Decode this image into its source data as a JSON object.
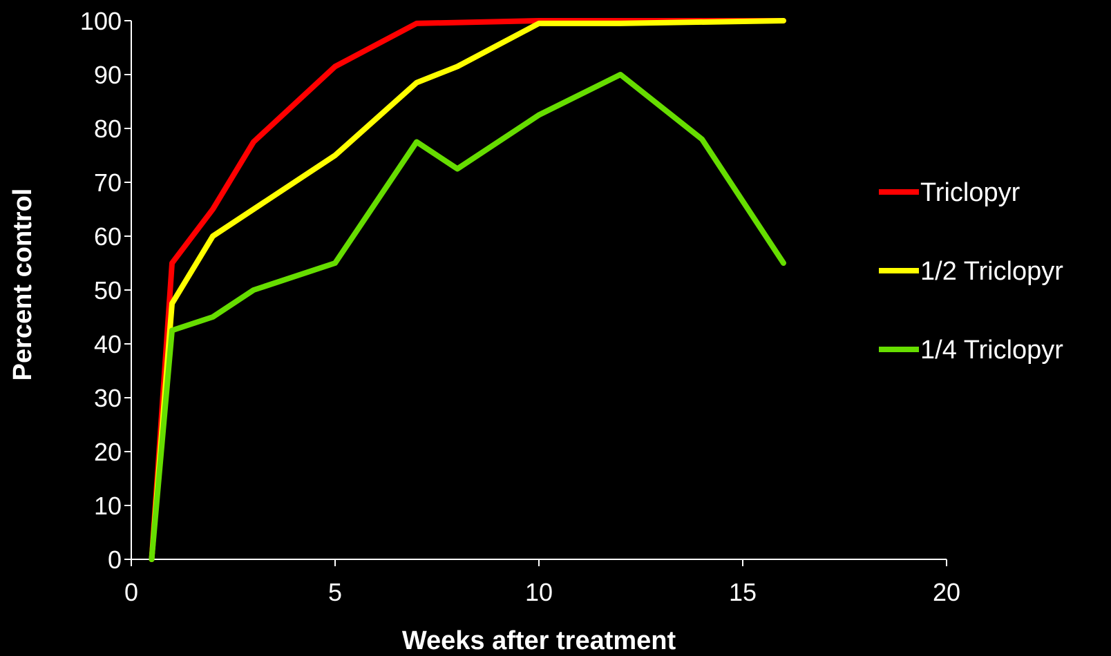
{
  "chart_data": {
    "type": "line",
    "title": "",
    "xlabel": "Weeks after treatment",
    "ylabel": "Percent control",
    "xlim": [
      0,
      20
    ],
    "ylim": [
      0,
      100
    ],
    "xticks": [
      "0",
      "5",
      "10",
      "15",
      "20"
    ],
    "yticks": [
      "0",
      "10",
      "20",
      "30",
      "40",
      "50",
      "60",
      "70",
      "80",
      "90",
      "100"
    ],
    "grid": false,
    "legend_position": "right",
    "series": [
      {
        "name": "Triclopyr",
        "color": "#ff0000",
        "x": [
          0.5,
          1,
          2,
          3,
          5,
          7,
          10,
          12,
          16
        ],
        "y": [
          0,
          55,
          65,
          77.5,
          91.5,
          99.5,
          100,
          100,
          100
        ]
      },
      {
        "name": "1/2 Triclopyr",
        "color": "#ffff00",
        "x": [
          0.5,
          1,
          2,
          3,
          5,
          7,
          8,
          10,
          12,
          16
        ],
        "y": [
          0,
          47.5,
          60,
          65,
          75,
          88.5,
          91.5,
          99.5,
          99.5,
          100
        ]
      },
      {
        "name": "1/4 Triclopyr",
        "color": "#66dd00",
        "x": [
          0.5,
          1,
          2,
          3,
          5,
          7,
          8,
          10,
          12,
          14,
          16
        ],
        "y": [
          0,
          42.5,
          45,
          50,
          55,
          77.5,
          72.5,
          82.5,
          90,
          78,
          55
        ]
      }
    ]
  }
}
